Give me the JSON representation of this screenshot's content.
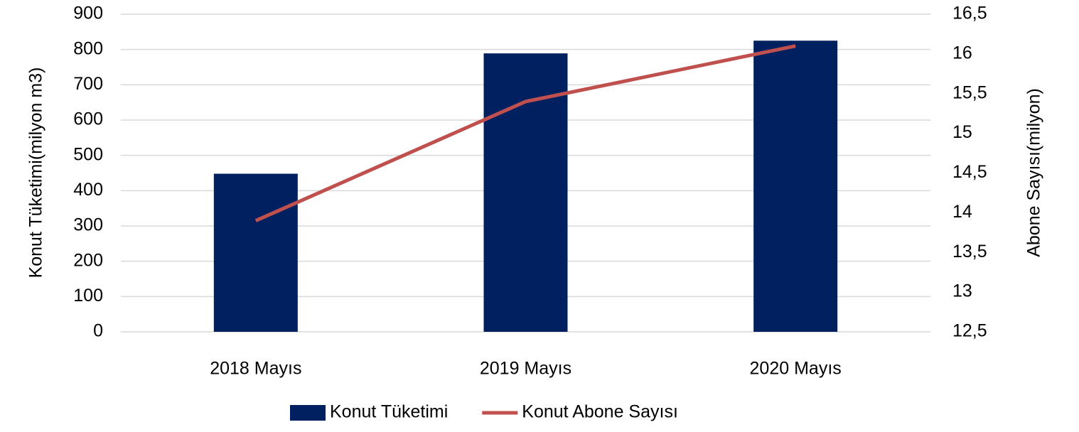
{
  "chart_data": {
    "type": "bar",
    "categories": [
      "2018 Mayıs",
      "2019 Mayıs",
      "2020 Mayıs"
    ],
    "series": [
      {
        "name": "Konut Tüketimi",
        "type": "bar",
        "color": "#002060",
        "values": [
          448,
          789,
          825
        ]
      },
      {
        "name": "Konut Abone Sayısı",
        "type": "line",
        "axis": "y2",
        "color": "#c0504d",
        "values": [
          13.9,
          15.4,
          16.1
        ]
      }
    ],
    "ylabel": "Konut Tüketimi(milyon m3)",
    "y2label": "Abone Sayısı(milyon)",
    "ylim": [
      0,
      900
    ],
    "yticks": [
      0,
      100,
      200,
      300,
      400,
      500,
      600,
      700,
      800,
      900
    ],
    "y2lim": [
      12.5,
      16.5
    ],
    "y2ticks": [
      {
        "value": 12.5,
        "label": "12,5"
      },
      13,
      {
        "value": 13.5,
        "label": "13,5"
      },
      14,
      {
        "value": 14.5,
        "label": "14,5"
      },
      15,
      {
        "value": 15.5,
        "label": "15,5"
      },
      16,
      {
        "value": 16.5,
        "label": "16,5"
      }
    ],
    "grid": true,
    "legend": "bottom"
  }
}
